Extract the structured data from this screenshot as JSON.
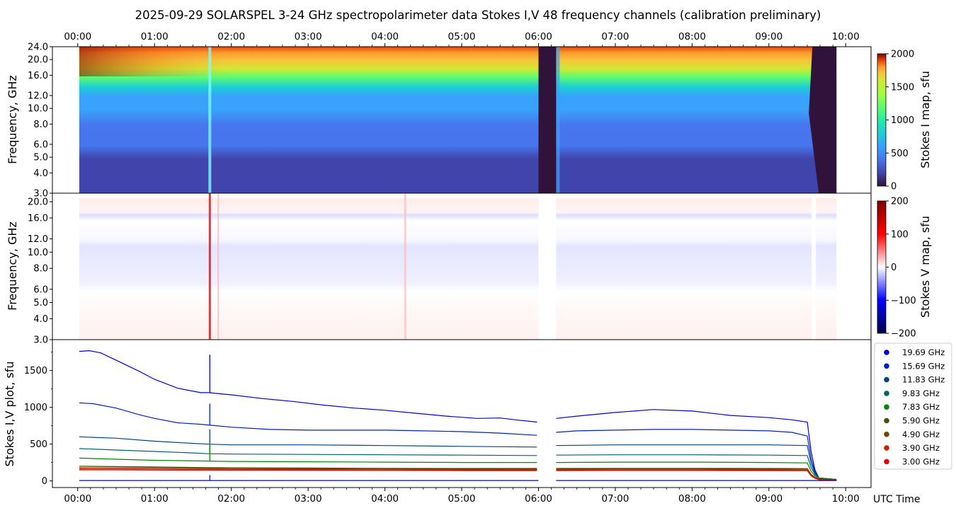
{
  "title": "2025-09-29  SOLARSPEL  3-24 GHz spectropolarimeter data   Stokes I,V   48 frequency channels   (calibration preliminary)",
  "time_ticks": [
    "00:00",
    "01:00",
    "02:00",
    "03:00",
    "04:00",
    "05:00",
    "06:00",
    "07:00",
    "08:00",
    "09:00",
    "10:00"
  ],
  "xlabel": "UTC Time",
  "colors": {
    "turbo_low": "#30123b",
    "turbo_mid": "#1ae4b6",
    "turbo_high": "#7a0403",
    "seismic_low": "#00004c",
    "seismic_mid": "#ffffff",
    "seismic_high": "#7f0000"
  },
  "chart_data": [
    {
      "type": "heatmap",
      "panel": "stokes-i-map",
      "ylabel": "Frequency, GHz",
      "yticks": [
        "24.0",
        "20.0",
        "16.0",
        "12.0",
        "10.0",
        "8.0",
        "6.0",
        "5.0",
        "4.0",
        "3.0"
      ],
      "ytick_values": [
        24,
        20,
        16,
        12,
        10,
        8,
        6,
        5,
        4,
        3
      ],
      "ylim": [
        3,
        24
      ],
      "yscale": "log",
      "xlim_hours": [
        -0.33,
        10.33
      ],
      "data_extent_hours": [
        0.02,
        9.88
      ],
      "gaps_hours": [
        [
          6.0,
          6.23
        ],
        [
          9.52,
          9.88
        ]
      ],
      "burst_hours": 1.72,
      "colorbar": {
        "label": "Stokes I map, sfu",
        "ticks": [
          "2000",
          "1500",
          "1000",
          "500",
          "0"
        ],
        "range": [
          0,
          2000
        ],
        "colormap": "turbo"
      },
      "profile_freq_ghz": [
        3.0,
        3.9,
        4.9,
        5.9,
        6.4,
        7.83,
        9.83,
        11.83,
        13.5,
        15.69,
        17.5,
        19.69,
        22.0,
        24.0
      ],
      "profile_sfu": [
        160,
        170,
        180,
        250,
        300,
        340,
        420,
        560,
        700,
        960,
        1250,
        1500,
        1700,
        1850
      ]
    },
    {
      "type": "heatmap",
      "panel": "stokes-v-map",
      "ylabel": "Frequency, GHz",
      "yticks": [
        "20.0",
        "16.0",
        "12.0",
        "10.0",
        "8.0",
        "6.0",
        "5.0",
        "4.0",
        "3.0"
      ],
      "ytick_values": [
        20,
        16,
        12,
        10,
        8,
        6,
        5,
        4,
        3
      ],
      "ylim": [
        3,
        22.5
      ],
      "yscale": "log",
      "colorbar": {
        "label": "Stokes V map, sfu",
        "ticks": [
          "200",
          "100",
          "0",
          "−100",
          "−200"
        ],
        "range": [
          -200,
          200
        ],
        "colormap": "seismic"
      }
    },
    {
      "type": "line",
      "panel": "stokes-iv-plot",
      "ylabel": "Stokes I,V plot, sfu",
      "yticks": [
        "1500",
        "1000",
        "500",
        "0"
      ],
      "ytick_values": [
        1500,
        1000,
        500,
        0
      ],
      "ylim": [
        -90,
        1920
      ],
      "xlim_hours": [
        -0.33,
        10.33
      ],
      "series": [
        {
          "name": "19.69 GHz",
          "color": "#0000dd",
          "x": [
            0.02,
            0.15,
            0.3,
            0.5,
            0.8,
            1.0,
            1.3,
            1.6,
            1.7,
            2.0,
            2.4,
            2.8,
            3.2,
            3.6,
            4.0,
            4.4,
            4.8,
            5.2,
            5.5,
            5.7,
            5.98,
            6.23,
            6.5,
            7.0,
            7.5,
            8.0,
            8.5,
            9.0,
            9.3,
            9.5,
            9.55,
            9.6,
            9.65,
            9.88
          ],
          "y": [
            1760,
            1770,
            1740,
            1640,
            1490,
            1380,
            1260,
            1200,
            1200,
            1170,
            1120,
            1080,
            1030,
            990,
            960,
            920,
            880,
            850,
            855,
            830,
            800,
            850,
            880,
            930,
            970,
            950,
            890,
            860,
            830,
            800,
            400,
            150,
            40,
            20
          ]
        },
        {
          "name": "15.69 GHz",
          "color": "#0020c0",
          "x": [
            0.02,
            0.2,
            0.5,
            0.8,
            1.0,
            1.3,
            1.6,
            1.7,
            2.0,
            2.5,
            3.0,
            3.5,
            4.0,
            4.5,
            5.0,
            5.5,
            5.98,
            6.23,
            6.5,
            7.0,
            7.5,
            8.0,
            8.5,
            9.0,
            9.3,
            9.5,
            9.55,
            9.6,
            9.65,
            9.88
          ],
          "y": [
            1060,
            1050,
            990,
            900,
            850,
            790,
            770,
            760,
            730,
            700,
            690,
            690,
            690,
            680,
            670,
            650,
            620,
            660,
            680,
            690,
            700,
            700,
            690,
            680,
            660,
            610,
            300,
            120,
            40,
            20
          ]
        },
        {
          "name": "11.83 GHz",
          "color": "#004488",
          "x": [
            0.02,
            0.5,
            1.0,
            1.5,
            1.7,
            2.0,
            3.0,
            4.0,
            5.0,
            5.98,
            6.23,
            7.0,
            8.0,
            9.0,
            9.5,
            9.55,
            9.6,
            9.65,
            9.88
          ],
          "y": [
            600,
            580,
            540,
            510,
            500,
            490,
            490,
            480,
            470,
            460,
            480,
            490,
            490,
            490,
            480,
            240,
            100,
            40,
            20
          ]
        },
        {
          "name": "9.83 GHz",
          "color": "#006666",
          "x": [
            0.02,
            0.5,
            1.0,
            1.5,
            1.7,
            2.0,
            3.0,
            4.0,
            5.0,
            5.98,
            6.23,
            7.0,
            8.0,
            9.0,
            9.5,
            9.55,
            9.6,
            9.65,
            9.88
          ],
          "y": [
            440,
            420,
            400,
            380,
            370,
            365,
            360,
            355,
            350,
            345,
            350,
            355,
            355,
            350,
            345,
            180,
            90,
            40,
            20
          ]
        },
        {
          "name": "7.83 GHz",
          "color": "#008800",
          "x": [
            0.02,
            0.5,
            1.0,
            1.7,
            2.0,
            3.0,
            4.0,
            5.0,
            5.98,
            6.23,
            7.0,
            8.0,
            9.0,
            9.5,
            9.55,
            9.6,
            9.65,
            9.88
          ],
          "y": [
            310,
            295,
            280,
            270,
            265,
            260,
            255,
            250,
            250,
            250,
            255,
            255,
            250,
            245,
            130,
            70,
            40,
            20
          ]
        },
        {
          "name": "5.90 GHz",
          "color": "#445500",
          "x": [
            0.02,
            0.5,
            1.0,
            1.7,
            2.0,
            3.0,
            4.0,
            5.0,
            5.98,
            6.23,
            7.0,
            8.0,
            9.0,
            9.5,
            9.55,
            9.6,
            9.65,
            9.88
          ],
          "y": [
            200,
            195,
            190,
            180,
            178,
            175,
            172,
            170,
            170,
            170,
            172,
            172,
            170,
            168,
            90,
            50,
            30,
            15
          ]
        },
        {
          "name": "4.90 GHz",
          "color": "#774400",
          "x": [
            0.02,
            0.5,
            1.0,
            1.7,
            2.0,
            3.0,
            4.0,
            5.0,
            5.98,
            6.23,
            7.0,
            8.0,
            9.0,
            9.5,
            9.55,
            9.6,
            9.65,
            9.88
          ],
          "y": [
            180,
            178,
            175,
            170,
            168,
            165,
            162,
            160,
            160,
            160,
            162,
            162,
            160,
            158,
            85,
            45,
            25,
            12
          ]
        },
        {
          "name": "3.90 GHz",
          "color": "#cc2200",
          "x": [
            0.02,
            0.5,
            1.0,
            1.7,
            2.0,
            3.0,
            4.0,
            5.0,
            5.98,
            6.23,
            7.0,
            8.0,
            9.0,
            9.5,
            9.55,
            9.6,
            9.65,
            9.88
          ],
          "y": [
            165,
            163,
            160,
            158,
            157,
            155,
            152,
            150,
            150,
            150,
            152,
            152,
            150,
            148,
            80,
            40,
            20,
            10
          ]
        },
        {
          "name": "3.00 GHz",
          "color": "#ee0000",
          "x": [
            0.02,
            0.5,
            1.0,
            1.7,
            2.0,
            3.0,
            4.0,
            5.0,
            5.98,
            6.23,
            7.0,
            8.0,
            9.0,
            9.5,
            9.55,
            9.6,
            9.65,
            9.88
          ],
          "y": [
            150,
            150,
            148,
            147,
            146,
            145,
            143,
            140,
            140,
            140,
            142,
            142,
            140,
            138,
            70,
            35,
            18,
            8
          ]
        }
      ],
      "v_series_y": 5
    }
  ]
}
